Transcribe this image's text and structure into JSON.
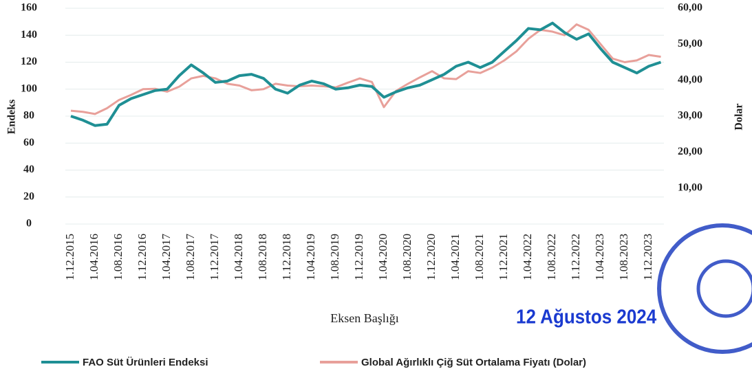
{
  "chart_data": {
    "type": "line",
    "categories": [
      "1.12.2015",
      null,
      "1.04.2016",
      null,
      "1.08.2016",
      null,
      "1.12.2016",
      null,
      "1.04.2017",
      null,
      "1.08.2017",
      null,
      "1.12.2017",
      null,
      "1.04.2018",
      null,
      "1.08.2018",
      null,
      "1.12.2018",
      null,
      "1.04.2019",
      null,
      "1.08.2019",
      null,
      "1.12.2019",
      null,
      "1.04.2020",
      null,
      "1.08.2020",
      null,
      "1.12.2020",
      null,
      "1.04.2021",
      null,
      "1.08.2021",
      null,
      "1.12.2021",
      null,
      "1.04.2022",
      null,
      "1.08.2022",
      null,
      "1.12.2022",
      null,
      "1.04.2023",
      null,
      "1.08.2023",
      null,
      "1.12.2023",
      null
    ],
    "series": [
      {
        "name": "FAO Süt Ürünleri Endeksi",
        "color": "#1f8f94",
        "values": [
          80,
          77,
          73,
          74,
          88,
          93,
          96,
          99,
          100,
          110,
          118,
          112,
          105,
          106,
          110,
          111,
          108,
          100,
          97,
          103,
          106,
          104,
          100,
          101,
          103,
          102,
          94,
          98,
          101,
          103,
          107,
          111,
          117,
          120,
          116,
          120,
          128,
          136,
          145,
          144,
          149,
          142,
          137,
          141,
          130,
          120,
          116,
          112,
          117,
          120
        ]
      },
      {
        "name": "Global Ağırlıklı Çiğ Süt Ortalama Fiyatı (Dolar)",
        "color": "#e8a09a",
        "axis": "y2",
        "values": [
          31.5,
          31.2,
          30.6,
          32.2,
          34.5,
          35.9,
          37.5,
          37.6,
          36.8,
          38.2,
          40.5,
          41.2,
          40.5,
          39.0,
          38.5,
          37.2,
          37.5,
          39.0,
          38.5,
          38.3,
          38.5,
          38.3,
          38.0,
          39.3,
          40.5,
          39.5,
          32.5,
          37.0,
          39.0,
          40.8,
          42.5,
          40.5,
          40.3,
          42.5,
          42.0,
          43.5,
          45.5,
          48.0,
          51.5,
          54.0,
          53.5,
          52.5,
          55.5,
          54.0,
          50.0,
          46.0,
          45.0,
          45.5,
          47.0,
          46.5
        ]
      }
    ],
    "ylabel": "Endeks",
    "y2label": "Dolar",
    "xlabel": "Eksen Başlığı",
    "ylim": [
      0,
      160
    ],
    "yticks": [
      0,
      20,
      40,
      60,
      80,
      100,
      120,
      140,
      160
    ],
    "y2lim": [
      0,
      60
    ],
    "y2ticks": [
      {
        "value": 10,
        "label": "10,00"
      },
      {
        "value": 20,
        "label": "20,00"
      },
      {
        "value": 30,
        "label": "30,00"
      },
      {
        "value": 40,
        "label": "40,00"
      },
      {
        "value": 50,
        "label": "50,00"
      },
      {
        "value": 60,
        "label": "60,00"
      }
    ],
    "grid": true,
    "legend": "bottom",
    "annotations": [
      "12 Ağustos 2024"
    ]
  }
}
